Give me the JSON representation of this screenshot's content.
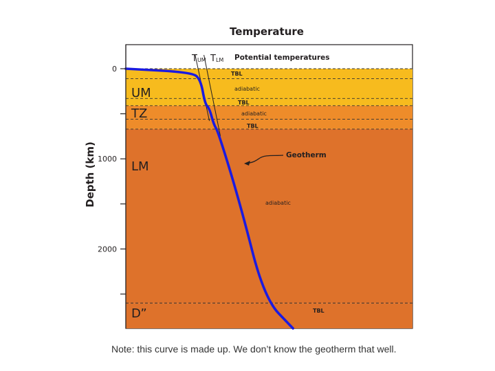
{
  "title": "Temperature",
  "y_axis": {
    "label": "Depth (km)",
    "ticks": [
      {
        "value": 0,
        "label": "0"
      },
      {
        "value": 500,
        "label": ""
      },
      {
        "value": 1000,
        "label": "1000"
      },
      {
        "value": 1500,
        "label": ""
      },
      {
        "value": 2000,
        "label": "2000"
      },
      {
        "value": 2500,
        "label": ""
      }
    ]
  },
  "potential_temps": {
    "t_um": "T",
    "t_um_sub": "UM",
    "t_lm": "T",
    "t_lm_sub": "LM",
    "label": "Potential temperatures"
  },
  "layers": [
    {
      "key": "um",
      "name": "UM",
      "top_km": 0,
      "bottom_km": 410,
      "color": "#F7BB1E"
    },
    {
      "key": "tz",
      "name": "TZ",
      "top_km": 410,
      "bottom_km": 670,
      "color": "#EE8C2A"
    },
    {
      "key": "lm",
      "name": "LM",
      "top_km": 670,
      "bottom_km": 2600,
      "color": "#DE722B"
    },
    {
      "key": "dpp",
      "name": "D”",
      "top_km": 2600,
      "bottom_km": 2890,
      "color": "#DE722B"
    }
  ],
  "boundaries_km": [
    0,
    110,
    330,
    410,
    560,
    670,
    2600
  ],
  "annotations": {
    "tbl_top": "TBL",
    "adiabatic_um": "adiabatic",
    "tbl_410": "TBL",
    "adiabatic_tz": "adiabatic",
    "tbl_660": "TBL",
    "geotherm": "Geotherm",
    "adiabatic_lm": "adiabatic",
    "tbl_dpp": "TBL"
  },
  "geotherm_curve": {
    "x_units": "relative temperature (0-1)",
    "points": [
      [
        0.0,
        0
      ],
      [
        0.3,
        40
      ],
      [
        0.34,
        120
      ],
      [
        0.36,
        390
      ],
      [
        0.38,
        440
      ],
      [
        0.4,
        620
      ],
      [
        0.42,
        700
      ],
      [
        0.52,
        1500
      ],
      [
        0.63,
        2550
      ],
      [
        0.76,
        2890
      ]
    ]
  },
  "tum_line": {
    "points": [
      [
        0.315,
        0
      ],
      [
        0.38,
        580
      ]
    ]
  },
  "tlm_line": {
    "points": [
      [
        0.355,
        0
      ],
      [
        0.43,
        750
      ]
    ]
  },
  "colors": {
    "geotherm": "#1B1BE0",
    "dashed": "#333333",
    "text": "#231F20"
  },
  "caption": "Note: this curve is made up.  We don’t know the geotherm that well."
}
